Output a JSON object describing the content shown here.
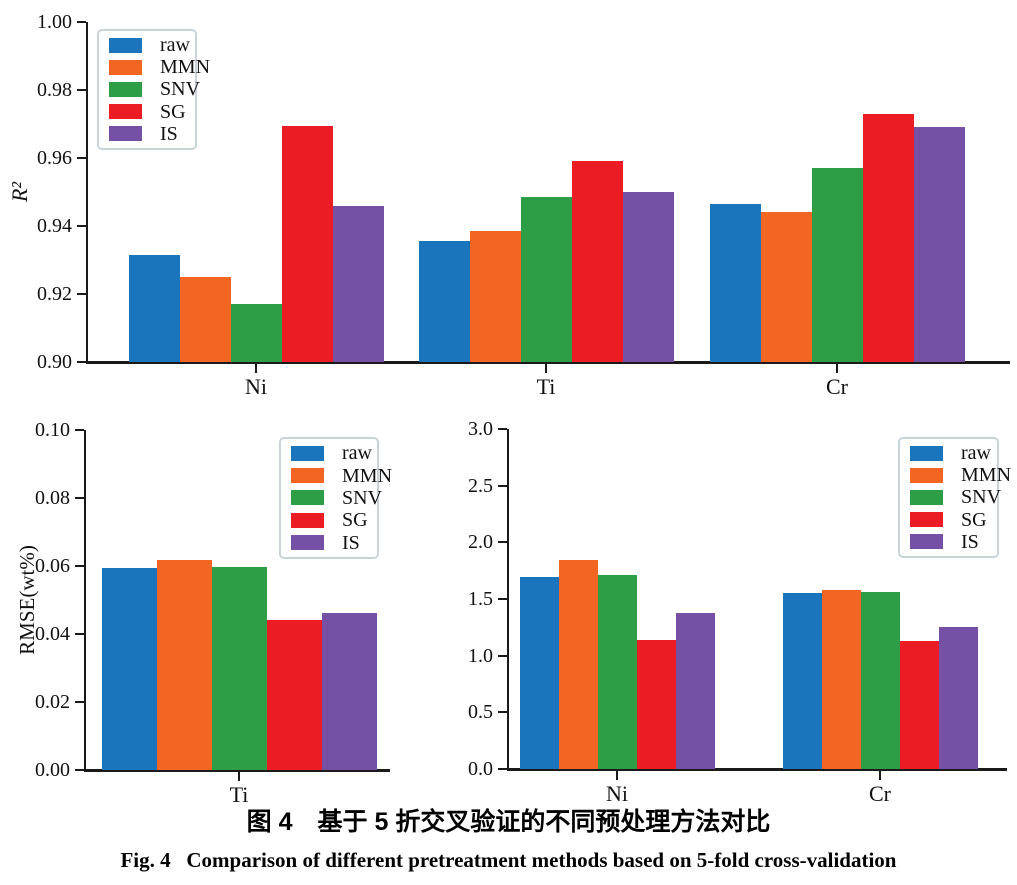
{
  "figure_caption": {
    "line1_zh": "图 4　基于 5 折交叉验证的不同预处理方法对比",
    "line2_en": "Fig. 4   Comparison of different pretreatment methods based on 5-fold cross-validation"
  },
  "legend_labels": [
    "raw",
    "MMN",
    "SNV",
    "SG",
    "IS"
  ],
  "colors": {
    "raw": "#1b75bc",
    "MMN": "#f26522",
    "SNV": "#2d9e45",
    "SG": "#ec1c24",
    "IS": "#7551a5",
    "axis": "#1a1a1a",
    "legend_border": "#c9d4da"
  },
  "chart_data": [
    {
      "id": "r2-by-element",
      "type": "bar",
      "title": "",
      "xlabel": "",
      "ylabel": "R²",
      "categories": [
        "Ni",
        "Ti",
        "Cr"
      ],
      "series": [
        {
          "name": "raw",
          "values": [
            0.9315,
            0.9355,
            0.9465
          ]
        },
        {
          "name": "MMN",
          "values": [
            0.925,
            0.9385,
            0.944
          ]
        },
        {
          "name": "SNV",
          "values": [
            0.917,
            0.9485,
            0.957
          ]
        },
        {
          "name": "SG",
          "values": [
            0.9695,
            0.959,
            0.973
          ]
        },
        {
          "name": "IS",
          "values": [
            0.946,
            0.95,
            0.969
          ]
        }
      ],
      "ylim": [
        0.9,
        1.0
      ],
      "ytick_step": 0.02,
      "ytick_labels": [
        "0.90",
        "0.92",
        "0.94",
        "0.96",
        "0.98",
        "1.00"
      ],
      "legend_position": "upper left",
      "grid": false
    },
    {
      "id": "rmse-ti",
      "type": "bar",
      "title": "",
      "xlabel": "",
      "ylabel": "RMSE(wt%)",
      "categories": [
        "Ti"
      ],
      "series": [
        {
          "name": "raw",
          "values": [
            0.0595
          ]
        },
        {
          "name": "MMN",
          "values": [
            0.0617
          ]
        },
        {
          "name": "SNV",
          "values": [
            0.0596
          ]
        },
        {
          "name": "SG",
          "values": [
            0.0441
          ]
        },
        {
          "name": "IS",
          "values": [
            0.0463
          ]
        }
      ],
      "ylim": [
        0.0,
        0.1
      ],
      "ytick_step": 0.02,
      "ytick_labels": [
        "0.00",
        "0.02",
        "0.04",
        "0.06",
        "0.08",
        "0.10"
      ],
      "legend_position": "upper right",
      "grid": false
    },
    {
      "id": "rmse-ni-cr",
      "type": "bar",
      "title": "",
      "xlabel": "",
      "ylabel": "",
      "categories": [
        "Ni",
        "Cr"
      ],
      "series": [
        {
          "name": "raw",
          "values": [
            1.69,
            1.55
          ]
        },
        {
          "name": "MMN",
          "values": [
            1.84,
            1.58
          ]
        },
        {
          "name": "SNV",
          "values": [
            1.71,
            1.56
          ]
        },
        {
          "name": "SG",
          "values": [
            1.14,
            1.13
          ]
        },
        {
          "name": "IS",
          "values": [
            1.38,
            1.25
          ]
        }
      ],
      "ylim": [
        0.0,
        3.0
      ],
      "ytick_step": 0.5,
      "ytick_labels": [
        "0.0",
        "0.5",
        "1.0",
        "1.5",
        "2.0",
        "2.5",
        "3.0"
      ],
      "legend_position": "upper right",
      "grid": false
    }
  ]
}
